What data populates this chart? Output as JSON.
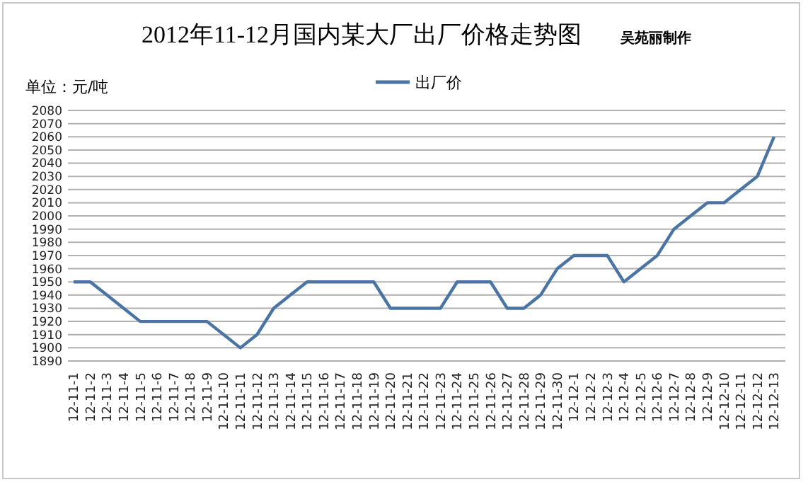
{
  "chart_data": {
    "type": "line",
    "title": "2012年11-12月国内某大厂出厂价格走势图",
    "subtitle": "吴苑丽制作",
    "ylabel": "单位：元/吨",
    "categories": [
      "12-11-1",
      "12-11-2",
      "12-11-3",
      "12-11-4",
      "12-11-5",
      "12-11-6",
      "12-11-7",
      "12-11-8",
      "12-11-9",
      "12-11-10",
      "12-11-11",
      "12-11-12",
      "12-11-13",
      "12-11-14",
      "12-11-15",
      "12-11-16",
      "12-11-17",
      "12-11-18",
      "12-11-19",
      "12-11-20",
      "12-11-21",
      "12-11-22",
      "12-11-23",
      "12-11-24",
      "12-11-25",
      "12-11-26",
      "12-11-27",
      "12-11-28",
      "12-11-29",
      "12-11-30",
      "12-12-1",
      "12-12-2",
      "12-12-3",
      "12-12-4",
      "12-12-5",
      "12-12-6",
      "12-12-7",
      "12-12-8",
      "12-12-9",
      "12-12-10",
      "12-12-11",
      "12-12-12",
      "12-12-13"
    ],
    "series": [
      {
        "name": "出厂价",
        "color": "#4a74a4",
        "values": [
          1950,
          1950,
          1940,
          1930,
          1920,
          1920,
          1920,
          1920,
          1920,
          1910,
          1900,
          1910,
          1930,
          1940,
          1950,
          1950,
          1950,
          1950,
          1950,
          1930,
          1930,
          1930,
          1930,
          1950,
          1950,
          1950,
          1930,
          1930,
          1940,
          1960,
          1970,
          1970,
          1970,
          1950,
          1960,
          1970,
          1990,
          2000,
          2010,
          2010,
          2020,
          2030,
          2060
        ]
      }
    ],
    "ylim": [
      1890,
      2080
    ],
    "yticks": [
      1890,
      1900,
      1910,
      1920,
      1930,
      1940,
      1950,
      1960,
      1970,
      1980,
      1990,
      2000,
      2010,
      2020,
      2030,
      2040,
      2050,
      2060,
      2070,
      2080
    ],
    "grid": "y",
    "legend": "top",
    "marker": "none",
    "line_style": "solid"
  }
}
